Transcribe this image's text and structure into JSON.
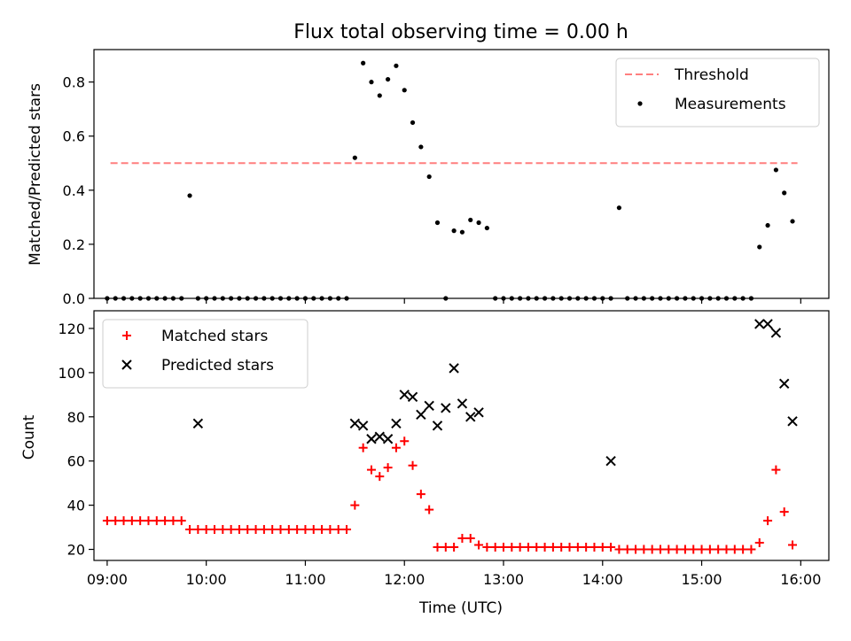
{
  "figure": {
    "title": "Flux total observing time = 0.00 h",
    "xlabel": "Time (UTC)"
  },
  "chart_data": [
    {
      "type": "scatter",
      "panel": "top",
      "title": "Flux total observing time = 0.00 h",
      "xlabel": "",
      "ylabel": "Matched/Predicted stars",
      "x_unit": "hours UTC",
      "xlim": [
        "08:52",
        "16:17"
      ],
      "ylim": [
        0,
        0.92
      ],
      "yticks": [
        0.0,
        0.2,
        0.4,
        0.6,
        0.8
      ],
      "yticklabels": [
        "0.0",
        "0.2",
        "0.4",
        "0.6",
        "0.8"
      ],
      "xticks": [
        "09:00",
        "10:00",
        "11:00",
        "12:00",
        "13:00",
        "14:00",
        "15:00",
        "16:00"
      ],
      "grid": false,
      "legend": "upper right",
      "series": [
        {
          "name": "Threshold",
          "kind": "line",
          "style": "dashed",
          "color": "#ff7f7f",
          "x": [
            "09:02",
            "15:58"
          ],
          "y": [
            0.5,
            0.5
          ]
        },
        {
          "name": "Measurements",
          "kind": "scatter",
          "color": "#000000",
          "marker": "dot",
          "x": [
            "09:00",
            "09:05",
            "09:10",
            "09:15",
            "09:20",
            "09:25",
            "09:30",
            "09:35",
            "09:40",
            "09:45",
            "09:50",
            "09:55",
            "10:00",
            "10:05",
            "10:10",
            "10:15",
            "10:20",
            "10:25",
            "10:30",
            "10:35",
            "10:40",
            "10:45",
            "10:50",
            "10:55",
            "11:00",
            "11:05",
            "11:10",
            "11:15",
            "11:20",
            "11:25",
            "11:30",
            "11:35",
            "11:40",
            "11:45",
            "11:50",
            "11:55",
            "12:00",
            "12:05",
            "12:10",
            "12:15",
            "12:20",
            "12:25",
            "12:30",
            "12:35",
            "12:40",
            "12:45",
            "12:50",
            "12:55",
            "13:00",
            "13:05",
            "13:10",
            "13:15",
            "13:20",
            "13:25",
            "13:30",
            "13:35",
            "13:40",
            "13:45",
            "13:50",
            "13:55",
            "14:00",
            "14:05",
            "14:10",
            "14:15",
            "14:20",
            "14:25",
            "14:30",
            "14:35",
            "14:40",
            "14:45",
            "14:50",
            "14:55",
            "15:00",
            "15:05",
            "15:10",
            "15:15",
            "15:20",
            "15:25",
            "15:30",
            "15:35",
            "15:40",
            "15:45",
            "15:50",
            "15:55"
          ],
          "y": [
            0,
            0,
            0,
            0,
            0,
            0,
            0,
            0,
            0,
            0,
            0.38,
            0,
            0,
            0,
            0,
            0,
            0,
            0,
            0,
            0,
            0,
            0,
            0,
            0,
            0,
            0,
            0,
            0,
            0,
            0,
            0.52,
            0.87,
            0.8,
            0.75,
            0.81,
            0.86,
            0.77,
            0.65,
            0.56,
            0.45,
            0.28,
            0,
            0.25,
            0.245,
            0.29,
            0.28,
            0.26,
            0,
            0,
            0,
            0,
            0,
            0,
            0,
            0,
            0,
            0,
            0,
            0,
            0,
            0,
            0,
            0.335,
            0,
            0,
            0,
            0,
            0,
            0,
            0,
            0,
            0,
            0,
            0,
            0,
            0,
            0,
            0,
            0,
            0.19,
            0.27,
            0.475,
            0.39,
            0.285
          ]
        }
      ]
    },
    {
      "type": "scatter",
      "panel": "bottom",
      "xlabel": "Time (UTC)",
      "ylabel": "Count",
      "x_unit": "hours UTC",
      "xlim": [
        "08:52",
        "16:17"
      ],
      "ylim": [
        15,
        128
      ],
      "yticks": [
        20,
        40,
        60,
        80,
        100,
        120
      ],
      "yticklabels": [
        "20",
        "40",
        "60",
        "80",
        "100",
        "120"
      ],
      "xticks": [
        "09:00",
        "10:00",
        "11:00",
        "12:00",
        "13:00",
        "14:00",
        "15:00",
        "16:00"
      ],
      "grid": false,
      "legend": "upper left",
      "series": [
        {
          "name": "Matched stars",
          "marker": "plus",
          "color": "#ff0000",
          "x": [
            "09:00",
            "09:05",
            "09:10",
            "09:15",
            "09:20",
            "09:25",
            "09:30",
            "09:35",
            "09:40",
            "09:45",
            "09:50",
            "09:55",
            "10:00",
            "10:05",
            "10:10",
            "10:15",
            "10:20",
            "10:25",
            "10:30",
            "10:35",
            "10:40",
            "10:45",
            "10:50",
            "10:55",
            "11:00",
            "11:05",
            "11:10",
            "11:15",
            "11:20",
            "11:25",
            "11:30",
            "11:35",
            "11:40",
            "11:45",
            "11:50",
            "11:55",
            "12:00",
            "12:05",
            "12:10",
            "12:15",
            "12:20",
            "12:25",
            "12:30",
            "12:35",
            "12:40",
            "12:45",
            "12:50",
            "12:55",
            "13:00",
            "13:05",
            "13:10",
            "13:15",
            "13:20",
            "13:25",
            "13:30",
            "13:35",
            "13:40",
            "13:45",
            "13:50",
            "13:55",
            "14:00",
            "14:05",
            "14:10",
            "14:15",
            "14:20",
            "14:25",
            "14:30",
            "14:35",
            "14:40",
            "14:45",
            "14:50",
            "14:55",
            "15:00",
            "15:05",
            "15:10",
            "15:15",
            "15:20",
            "15:25",
            "15:30",
            "15:35",
            "15:40",
            "15:45",
            "15:50",
            "15:55"
          ],
          "y": [
            33,
            33,
            33,
            33,
            33,
            33,
            33,
            33,
            33,
            33,
            29,
            29,
            29,
            29,
            29,
            29,
            29,
            29,
            29,
            29,
            29,
            29,
            29,
            29,
            29,
            29,
            29,
            29,
            29,
            29,
            40,
            66,
            56,
            53,
            57,
            66,
            69,
            58,
            45,
            38,
            21,
            21,
            21,
            25,
            25,
            22,
            21,
            21,
            21,
            21,
            21,
            21,
            21,
            21,
            21,
            21,
            21,
            21,
            21,
            21,
            21,
            21,
            20,
            20,
            20,
            20,
            20,
            20,
            20,
            20,
            20,
            20,
            20,
            20,
            20,
            20,
            20,
            20,
            20,
            23,
            33,
            56,
            37,
            22
          ]
        },
        {
          "name": "Predicted stars",
          "marker": "x",
          "color": "#000000",
          "x": [
            "09:55",
            "11:30",
            "11:35",
            "11:40",
            "11:45",
            "11:50",
            "11:55",
            "12:00",
            "12:05",
            "12:10",
            "12:15",
            "12:20",
            "12:25",
            "12:30",
            "12:35",
            "12:40",
            "12:45",
            "12:50",
            "14:05",
            "15:35",
            "15:40",
            "15:45",
            "15:50",
            "15:55"
          ],
          "y": [
            77,
            77,
            76,
            70,
            71,
            70,
            77,
            90,
            89,
            81,
            85,
            76,
            84,
            102,
            86,
            80,
            82,
            null,
            60,
            122,
            122,
            118,
            95,
            78
          ]
        }
      ]
    }
  ]
}
